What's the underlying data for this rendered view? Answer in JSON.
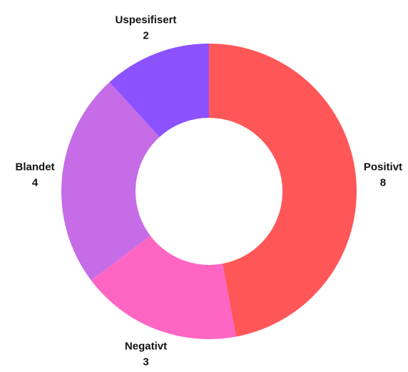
{
  "chart_data": {
    "type": "donut",
    "categories": [
      "Positivt",
      "Negativt",
      "Blandet",
      "Uspesifisert"
    ],
    "values": [
      8,
      3,
      4,
      2
    ],
    "colors": [
      "#ff5757",
      "#ff66c4",
      "#c56ce6",
      "#8c52ff"
    ]
  }
}
